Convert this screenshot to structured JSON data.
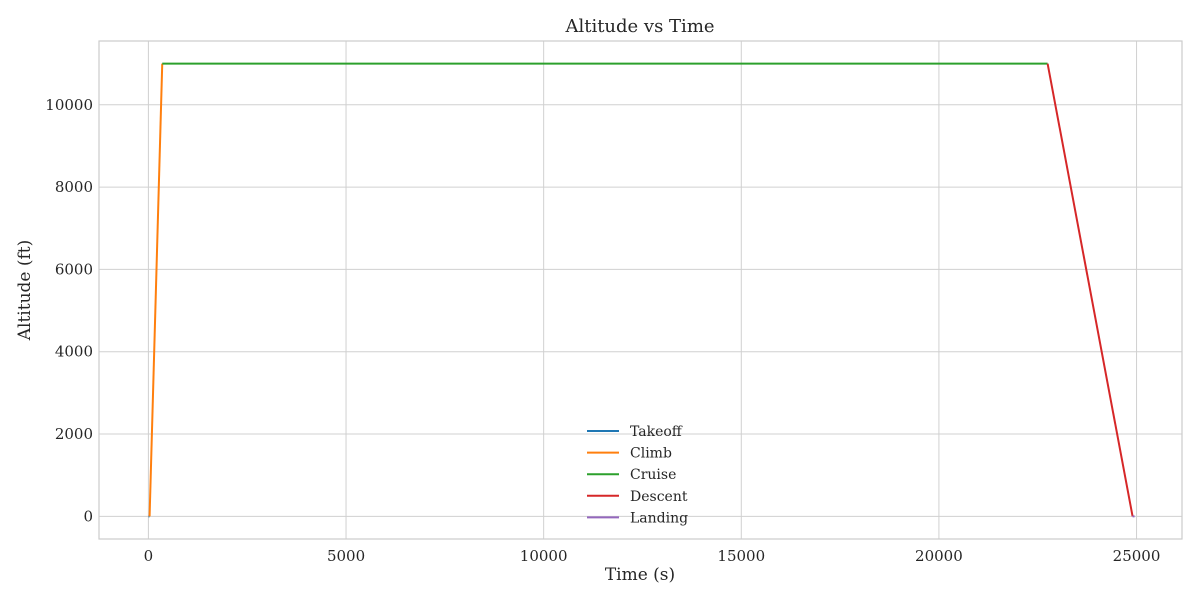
{
  "chart_data": {
    "type": "line",
    "title": "Altitude vs Time",
    "xlabel": "Time (s)",
    "ylabel": "Altitude (ft)",
    "xlim": [
      -1250,
      26150
    ],
    "ylim": [
      -550,
      11550
    ],
    "xticks": [
      0,
      5000,
      10000,
      15000,
      20000,
      25000
    ],
    "yticks": [
      0,
      2000,
      4000,
      6000,
      8000,
      10000
    ],
    "grid": true,
    "legend_position": "lower center",
    "series": [
      {
        "name": "Takeoff",
        "color": "#1f77b4",
        "x": [
          0,
          30
        ],
        "y": [
          0,
          0
        ]
      },
      {
        "name": "Climb",
        "color": "#ff7f0e",
        "x": [
          30,
          350
        ],
        "y": [
          0,
          11000
        ]
      },
      {
        "name": "Cruise",
        "color": "#2ca02c",
        "x": [
          350,
          22750
        ],
        "y": [
          11000,
          11000
        ]
      },
      {
        "name": "Descent",
        "color": "#d62728",
        "x": [
          22750,
          24900
        ],
        "y": [
          11000,
          0
        ]
      },
      {
        "name": "Landing",
        "color": "#9467bd",
        "x": [
          24900,
          24950
        ],
        "y": [
          0,
          0
        ]
      }
    ]
  }
}
